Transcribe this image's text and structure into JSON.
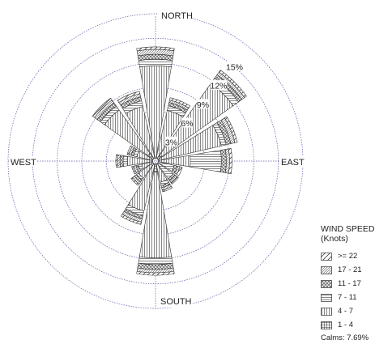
{
  "chart_data": {
    "type": "wind-rose",
    "direction_labels": {
      "north": "NORTH",
      "east": "EAST",
      "south": "SOUTH",
      "west": "WEST"
    },
    "rings": [
      {
        "value": 3,
        "label": "3%"
      },
      {
        "value": 6,
        "label": "6%"
      },
      {
        "value": 9,
        "label": "9%"
      },
      {
        "value": 12,
        "label": "12%"
      },
      {
        "value": 15,
        "label": "15%"
      }
    ],
    "ring_max": 18,
    "legend_title_line1": "WIND SPEED",
    "legend_title_line2": "(Knots)",
    "speed_classes": [
      {
        "label": ">= 22",
        "pattern": "diag-sparse"
      },
      {
        "label": "17 - 21",
        "pattern": "diag-dense"
      },
      {
        "label": "11 - 17",
        "pattern": "crosshatch"
      },
      {
        "label": "7 - 11",
        "pattern": "horizontal"
      },
      {
        "label": "4 - 7",
        "pattern": "vertical"
      },
      {
        "label": "1 - 4",
        "pattern": "grid"
      }
    ],
    "calms": "Calms: 7.69%",
    "directions": [
      {
        "bearing": 0,
        "segments": [
          0.3,
          0.6,
          0.6,
          0.8,
          11.3,
          0.0
        ]
      },
      {
        "bearing": 22.5,
        "segments": [
          0.3,
          0.3,
          0.4,
          0.6,
          6.0,
          0.0
        ]
      },
      {
        "bearing": 45,
        "segments": [
          0.3,
          0.4,
          0.5,
          0.8,
          10.8,
          0.5
        ]
      },
      {
        "bearing": 67.5,
        "segments": [
          0.3,
          0.5,
          0.6,
          0.6,
          7.9,
          0.0
        ]
      },
      {
        "bearing": 90,
        "segments": [
          0.3,
          0.4,
          0.6,
          3.8,
          3.9,
          0.0
        ]
      },
      {
        "bearing": 112.5,
        "segments": [
          0.3,
          0.3,
          0.4,
          2.0,
          0.0,
          0.0
        ]
      },
      {
        "bearing": 135,
        "segments": [
          0.2,
          0.3,
          0.3,
          2.3,
          0.0,
          0.0
        ]
      },
      {
        "bearing": 157.5,
        "segments": [
          0.2,
          0.3,
          0.3,
          0.4,
          2.3,
          0.0
        ]
      },
      {
        "bearing": 180,
        "segments": [
          0.3,
          0.4,
          0.6,
          0.8,
          10.5,
          1.0
        ]
      },
      {
        "bearing": 202.5,
        "segments": [
          0.3,
          0.4,
          0.4,
          0.6,
          5.9,
          0.0
        ]
      },
      {
        "bearing": 225,
        "segments": [
          0.2,
          0.3,
          0.3,
          0.3,
          2.2,
          0.0
        ]
      },
      {
        "bearing": 247.5,
        "segments": [
          0.2,
          0.3,
          0.3,
          0.4,
          1.4,
          0.0
        ]
      },
      {
        "bearing": 270,
        "segments": [
          0.2,
          0.3,
          0.4,
          0.5,
          3.1,
          0.0
        ]
      },
      {
        "bearing": 292.5,
        "segments": [
          0.2,
          0.3,
          0.3,
          0.4,
          2.0,
          0.0
        ]
      },
      {
        "bearing": 315,
        "segments": [
          0.3,
          0.4,
          0.5,
          0.6,
          6.5,
          0.8
        ]
      },
      {
        "bearing": 337.5,
        "segments": [
          0.3,
          0.4,
          0.5,
          0.7,
          6.5,
          0.0
        ]
      }
    ]
  }
}
